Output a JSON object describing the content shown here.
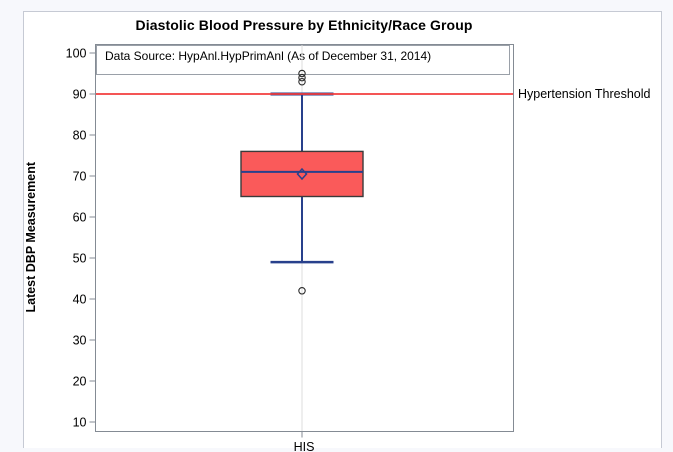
{
  "page": {
    "background": "#f7f8fc",
    "figure_background": "#ffffff",
    "figure_border": "#c6cad4"
  },
  "chart_data": {
    "type": "boxplot",
    "title": "Diastolic Blood Pressure by Ethnicity/Race Group",
    "inset_note": "Data Source: HypAnl.HypPrimAnl (As of December 31, 2014)",
    "ylabel": "Latest DBP Measurement",
    "xlabel": "",
    "categories": [
      "HIS"
    ],
    "y_ticks": [
      100,
      90,
      80,
      70,
      60,
      50,
      40,
      30,
      20,
      10
    ],
    "ylim": [
      10,
      100
    ],
    "legend": "none",
    "grid": "category reference line only",
    "series": [
      {
        "category": "HIS",
        "q1": 65,
        "median": 71,
        "q3": 76,
        "mean": 70.5,
        "whisker_low": 49,
        "whisker_high": 90,
        "outliers": [
          42,
          93,
          94,
          95
        ]
      }
    ],
    "reference_line": {
      "y": 90,
      "label": "Hypertension Threshold"
    },
    "colors": {
      "box_fill": "#fa5a5a",
      "box_border": "#3a3a3a",
      "whisker": "#28408c",
      "reference": "#f23d3d",
      "axis": "#848b94",
      "category_line": "#dcdcdc",
      "outlier": "#2a2a2a",
      "text": "#000000"
    }
  }
}
